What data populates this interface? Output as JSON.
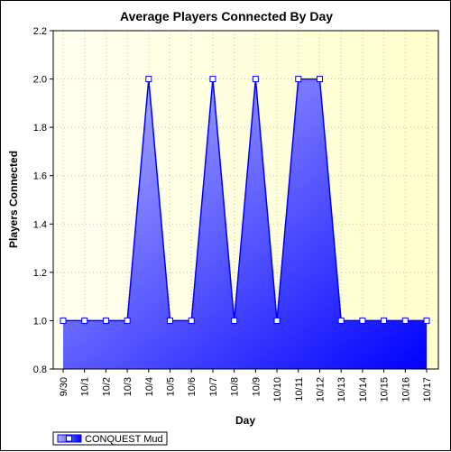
{
  "chart_data": {
    "type": "area",
    "title": "Average Players Connected By Day",
    "xlabel": "Day",
    "ylabel": "Players Connected",
    "categories": [
      "9/30",
      "10/1",
      "10/2",
      "10/3",
      "10/4",
      "10/5",
      "10/6",
      "10/7",
      "10/8",
      "10/9",
      "10/10",
      "10/11",
      "10/12",
      "10/13",
      "10/14",
      "10/15",
      "10/16",
      "10/17"
    ],
    "series": [
      {
        "name": "CONQUEST Mud",
        "values": [
          1.0,
          1.0,
          1.0,
          1.0,
          2.0,
          1.0,
          1.0,
          2.0,
          1.0,
          2.0,
          1.0,
          2.0,
          2.0,
          1.0,
          1.0,
          1.0,
          1.0,
          1.0
        ]
      }
    ],
    "ylim": [
      0.8,
      2.2
    ],
    "yticks": [
      "0.8",
      "1.0",
      "1.2",
      "1.4",
      "1.6",
      "1.8",
      "2.0",
      "2.2"
    ],
    "grid": true,
    "legend_position": "bottom-left"
  },
  "colors": {
    "plot_background_left": "#fffff0",
    "plot_background_right": "#ffffcc",
    "area_fill_light": "#b8b8ff",
    "area_fill_dark": "#0000ff",
    "line": "#0000ff",
    "marker_fill": "#ffffff",
    "grid": "#c8c8a0"
  }
}
